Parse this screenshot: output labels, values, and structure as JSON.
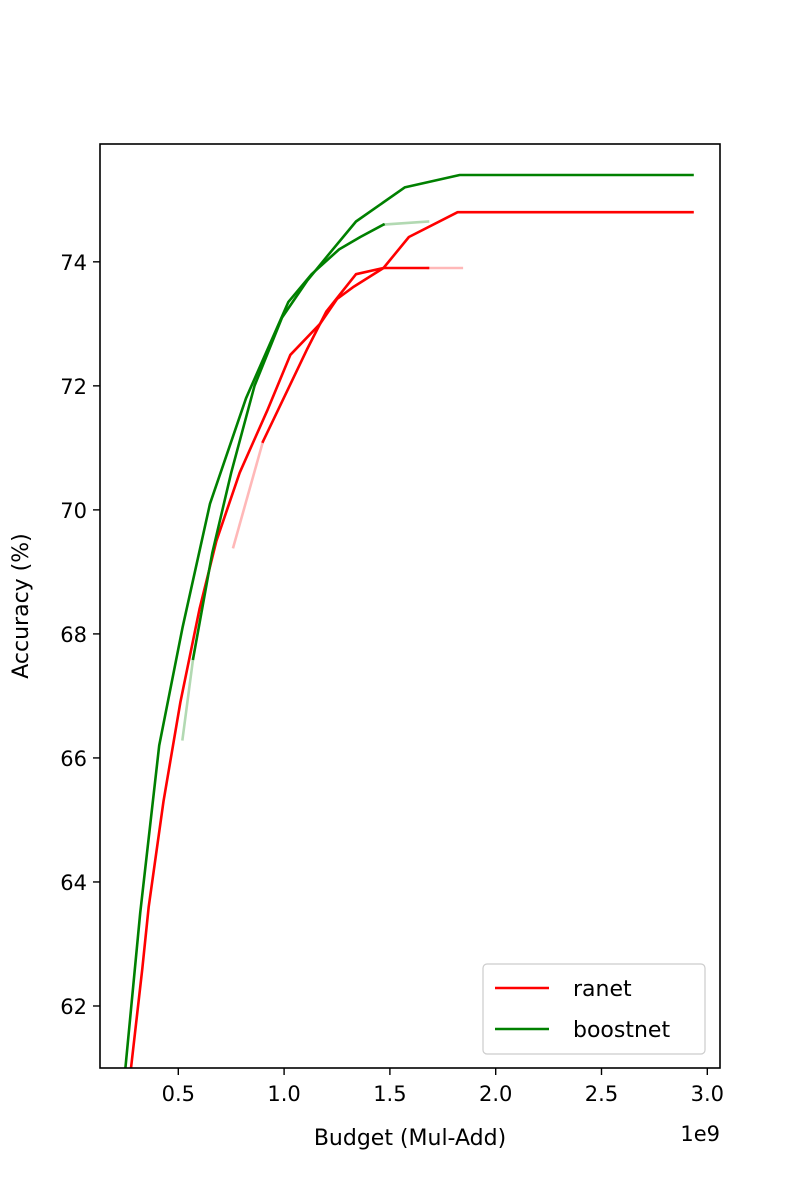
{
  "chart_data": {
    "type": "line",
    "title": "",
    "xlabel": "Budget (Mul-Add)",
    "ylabel": "Accuracy (%)",
    "x_offset_label": "1e9",
    "xlim": [
      0.13,
      3.06
    ],
    "ylim": [
      61.0,
      75.9
    ],
    "xticks": [
      0.5,
      1.0,
      1.5,
      2.0,
      2.5,
      3.0
    ],
    "xtick_labels": [
      "0.5",
      "1.0",
      "1.5",
      "2.0",
      "2.5",
      "3.0"
    ],
    "yticks": [
      62,
      64,
      66,
      68,
      70,
      72,
      74
    ],
    "ytick_labels": [
      "62",
      "64",
      "66",
      "68",
      "70",
      "72",
      "74"
    ],
    "grid": false,
    "legend_position": "lower-right",
    "legend": [
      {
        "label": "ranet",
        "color": "#ff0000"
      },
      {
        "label": "boostnet",
        "color": "#008000"
      }
    ],
    "series": [
      {
        "name": "ranet",
        "color": "#ff0000",
        "opacity": 1,
        "x": [
          0.27,
          0.33,
          0.36,
          0.43,
          0.51,
          0.6,
          0.68,
          0.79,
          0.92,
          1.03,
          1.17,
          1.25,
          1.33,
          1.47,
          1.59,
          1.82,
          2.93
        ],
        "y": [
          60.8,
          62.6,
          63.6,
          65.3,
          66.9,
          68.4,
          69.5,
          70.6,
          71.6,
          72.5,
          73.0,
          73.4,
          73.6,
          73.9,
          74.4,
          74.8,
          74.8
        ]
      },
      {
        "name": "ranet",
        "color": "#ff0000",
        "opacity": 1,
        "x": [
          0.9,
          1.11,
          1.2,
          1.34,
          1.47,
          1.68
        ],
        "y": [
          71.1,
          72.6,
          73.2,
          73.8,
          73.9,
          73.9
        ]
      },
      {
        "name": "ranet",
        "color": "#ff0000",
        "opacity": 0.28,
        "x": [
          0.76,
          0.9
        ],
        "y": [
          69.4,
          71.1
        ]
      },
      {
        "name": "ranet",
        "color": "#ff0000",
        "opacity": 0.28,
        "x": [
          1.68,
          1.84
        ],
        "y": [
          73.9,
          73.9
        ]
      },
      {
        "name": "boostnet",
        "color": "#008000",
        "opacity": 1,
        "x": [
          0.25,
          0.32,
          0.41,
          0.52,
          0.65,
          0.82,
          1.02,
          1.13,
          1.26,
          1.36,
          1.47
        ],
        "y": [
          61.0,
          63.5,
          66.2,
          68.1,
          70.1,
          71.8,
          73.35,
          73.8,
          74.2,
          74.4,
          74.6
        ]
      },
      {
        "name": "boostnet",
        "color": "#008000",
        "opacity": 1,
        "x": [
          0.57,
          0.66,
          0.75,
          0.86,
          0.99,
          1.11,
          1.23,
          1.34,
          1.57,
          1.83,
          2.93
        ],
        "y": [
          67.6,
          69.3,
          70.6,
          72.0,
          73.1,
          73.7,
          74.2,
          74.65,
          75.2,
          75.4,
          75.4
        ]
      },
      {
        "name": "boostnet",
        "color": "#008000",
        "opacity": 0.3,
        "x": [
          0.52,
          0.57
        ],
        "y": [
          66.3,
          67.6
        ]
      },
      {
        "name": "boostnet",
        "color": "#008000",
        "opacity": 0.3,
        "x": [
          1.47,
          1.68
        ],
        "y": [
          74.6,
          74.65
        ]
      }
    ]
  }
}
